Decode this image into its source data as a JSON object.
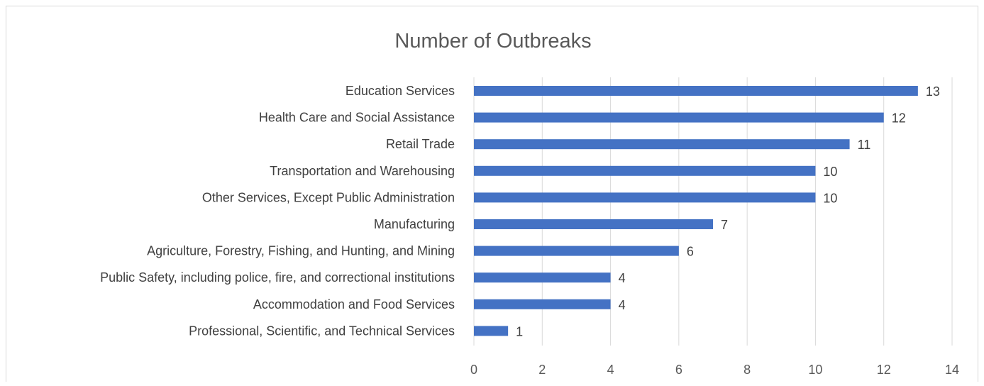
{
  "chart_data": {
    "type": "bar",
    "orientation": "horizontal",
    "title": "Number of Outbreaks",
    "categories": [
      "Education Services",
      "Health Care and Social Assistance",
      "Retail Trade",
      "Transportation and Warehousing",
      "Other Services, Except Public Administration",
      "Manufacturing",
      "Agriculture, Forestry, Fishing, and Hunting, and Mining",
      "Public Safety, including police, fire, and correctional institutions",
      "Accommodation and Food Services",
      "Professional, Scientific, and Technical Services"
    ],
    "values": [
      13,
      12,
      11,
      10,
      10,
      7,
      6,
      4,
      4,
      1
    ],
    "xlim": [
      0,
      14
    ],
    "xticks": [
      0,
      2,
      4,
      6,
      8,
      10,
      12,
      14
    ],
    "grid": true,
    "legend": "none",
    "colors": {
      "bar": "#4472C4",
      "grid": "#d9d9d9"
    }
  }
}
